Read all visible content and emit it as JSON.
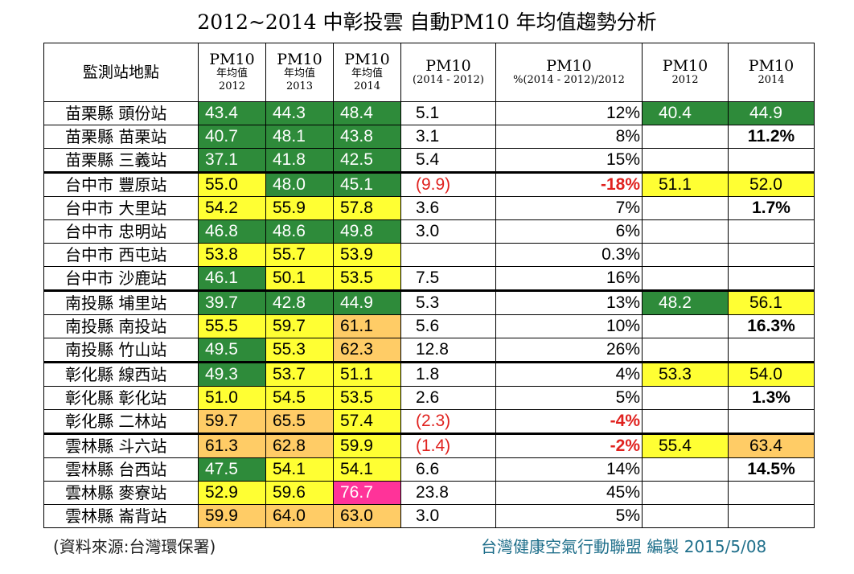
{
  "title": "2012~2014 中彰投雲 自動PM10 年均值趨勢分析",
  "colors": {
    "green": "#2e8b3a",
    "yellow": "#ffff33",
    "orange": "#ffcc66",
    "pink": "#ff3399",
    "negative": "#e0221f"
  },
  "chart_data": {
    "type": "table",
    "title": "2012~2014 中彰投雲 自動PM10 年均值趨勢分析",
    "headers": [
      {
        "lines": [
          "監測站地點"
        ]
      },
      {
        "lines": [
          "PM10",
          "年均值",
          "2012"
        ]
      },
      {
        "lines": [
          "PM10",
          "年均值",
          "2013"
        ]
      },
      {
        "lines": [
          "PM10",
          "年均值",
          "2014"
        ]
      },
      {
        "lines": [
          "PM10",
          "(2014 - 2012)"
        ]
      },
      {
        "lines": [
          "PM10",
          "%(2014 - 2012)/2012"
        ]
      },
      {
        "lines": [
          "PM10",
          "2012"
        ]
      },
      {
        "lines": [
          "PM10",
          "2014"
        ]
      }
    ],
    "rows": [
      {
        "station": "苗栗縣 頭份站",
        "v2012": "43.4",
        "c2012": "g",
        "v2013": "44.3",
        "c2013": "g",
        "v2014": "48.4",
        "c2014": "g",
        "diff": "5.1",
        "pct": "12%",
        "avg2012": "40.4",
        "ca2012": "g",
        "avg2014": "44.9",
        "ca2014": "g",
        "group_start": true
      },
      {
        "station": "苗栗縣 苗栗站",
        "v2012": "40.7",
        "c2012": "g",
        "v2013": "48.1",
        "c2013": "g",
        "v2014": "43.8",
        "c2014": "g",
        "diff": "3.1",
        "pct": "8%",
        "avg2012": "",
        "avg2014": "11.2%",
        "bold2014": true
      },
      {
        "station": "苗栗縣 三義站",
        "v2012": "37.1",
        "c2012": "g",
        "v2013": "41.8",
        "c2013": "g",
        "v2014": "42.5",
        "c2014": "g",
        "diff": "5.4",
        "pct": "15%",
        "avg2012": "",
        "avg2014": ""
      },
      {
        "station": "台中市 豐原站",
        "v2012": "55.0",
        "c2012": "y",
        "v2013": "48.0",
        "c2013": "g",
        "v2014": "45.1",
        "c2014": "g",
        "diff": "(9.9)",
        "neg": true,
        "pct": "-18%",
        "avg2012": "51.1",
        "ca2012": "y",
        "avg2014": "52.0",
        "ca2014": "y",
        "group_start": true
      },
      {
        "station": "台中市 大里站",
        "v2012": "54.2",
        "c2012": "y",
        "v2013": "55.9",
        "c2013": "y",
        "v2014": "57.8",
        "c2014": "y",
        "diff": "3.6",
        "pct": "7%",
        "avg2012": "",
        "avg2014": "1.7%",
        "bold2014": true
      },
      {
        "station": "台中市 忠明站",
        "v2012": "46.8",
        "c2012": "g",
        "v2013": "48.6",
        "c2013": "g",
        "v2014": "49.8",
        "c2014": "g",
        "diff": "3.0",
        "pct": "6%",
        "avg2012": "",
        "avg2014": ""
      },
      {
        "station": "台中市 西屯站",
        "v2012": "53.8",
        "c2012": "y",
        "v2013": "55.7",
        "c2013": "y",
        "v2014": "53.9",
        "c2014": "y",
        "diff": "",
        "pct": "0.3%",
        "avg2012": "",
        "avg2014": ""
      },
      {
        "station": "台中市 沙鹿站",
        "v2012": "46.1",
        "c2012": "g",
        "v2013": "50.1",
        "c2013": "y",
        "v2014": "53.5",
        "c2014": "y",
        "diff": "7.5",
        "pct": "16%",
        "avg2012": "",
        "avg2014": ""
      },
      {
        "station": "南投縣 埔里站",
        "v2012": "39.7",
        "c2012": "g",
        "v2013": "42.8",
        "c2013": "g",
        "v2014": "44.9",
        "c2014": "g",
        "diff": "5.3",
        "pct": "13%",
        "avg2012": "48.2",
        "ca2012": "g",
        "avg2014": "56.1",
        "ca2014": "y",
        "group_start": true
      },
      {
        "station": "南投縣 南投站",
        "v2012": "55.5",
        "c2012": "y",
        "v2013": "59.7",
        "c2013": "y",
        "v2014": "61.1",
        "c2014": "o",
        "diff": "5.6",
        "pct": "10%",
        "avg2012": "",
        "avg2014": "16.3%",
        "bold2014": true
      },
      {
        "station": "南投縣 竹山站",
        "v2012": "49.5",
        "c2012": "g",
        "v2013": "55.3",
        "c2013": "y",
        "v2014": "62.3",
        "c2014": "o",
        "diff": "12.8",
        "pct": "26%",
        "avg2012": "",
        "avg2014": ""
      },
      {
        "station": "彰化縣 線西站",
        "v2012": "49.3",
        "c2012": "g",
        "v2013": "53.7",
        "c2013": "y",
        "v2014": "51.1",
        "c2014": "y",
        "diff": "1.8",
        "pct": "4%",
        "avg2012": "53.3",
        "ca2012": "y",
        "avg2014": "54.0",
        "ca2014": "y",
        "group_start": true
      },
      {
        "station": "彰化縣 彰化站",
        "v2012": "51.0",
        "c2012": "y",
        "v2013": "54.5",
        "c2013": "y",
        "v2014": "53.5",
        "c2014": "y",
        "diff": "2.6",
        "pct": "5%",
        "avg2012": "",
        "avg2014": "1.3%",
        "bold2014": true
      },
      {
        "station": "彰化縣 二林站",
        "v2012": "59.7",
        "c2012": "o",
        "v2013": "65.5",
        "c2013": "o",
        "v2014": "57.4",
        "c2014": "y",
        "diff": "(2.3)",
        "neg": true,
        "pct": "-4%",
        "avg2012": "",
        "avg2014": ""
      },
      {
        "station": "雲林縣 斗六站",
        "v2012": "61.3",
        "c2012": "o",
        "v2013": "62.8",
        "c2013": "o",
        "v2014": "59.9",
        "c2014": "y",
        "diff": "(1.4)",
        "neg": true,
        "pct": "-2%",
        "avg2012": "55.4",
        "ca2012": "y",
        "avg2014": "63.4",
        "ca2014": "o",
        "group_start": true
      },
      {
        "station": "雲林縣 台西站",
        "v2012": "47.5",
        "c2012": "g",
        "v2013": "54.1",
        "c2013": "y",
        "v2014": "54.1",
        "c2014": "y",
        "diff": "6.6",
        "pct": "14%",
        "avg2012": "",
        "avg2014": "14.5%",
        "bold2014": true
      },
      {
        "station": "雲林縣 麥寮站",
        "v2012": "52.9",
        "c2012": "y",
        "v2013": "59.6",
        "c2013": "y",
        "v2014": "76.7",
        "c2014": "p",
        "diff": "23.8",
        "pct": "45%",
        "avg2012": "",
        "avg2014": ""
      },
      {
        "station": "雲林縣 崙背站",
        "v2012": "59.9",
        "c2012": "o",
        "v2013": "64.0",
        "c2013": "o",
        "v2014": "63.0",
        "c2014": "o",
        "diff": "3.0",
        "pct": "5%",
        "avg2012": "",
        "avg2014": ""
      }
    ]
  },
  "footer": {
    "source": "(資料來源:台灣環保署)",
    "credit": "台灣健康空氣行動聯盟 編製 2015/5/08"
  }
}
